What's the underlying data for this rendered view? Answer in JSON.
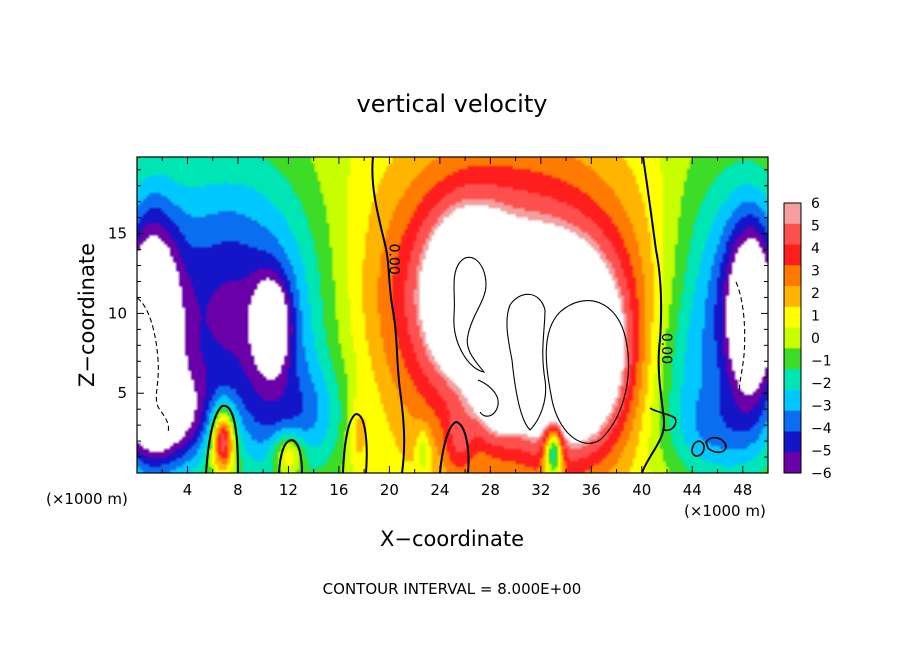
{
  "chart_data": {
    "type": "heatmap",
    "title": "vertical velocity",
    "xlabel": "X−coordinate",
    "ylabel": "Z−coordinate",
    "x_unit_left": "(×1000 m)",
    "x_unit_right": "(×1000 m)",
    "footer": "CONTOUR INTERVAL = 8.000E+00",
    "xlim": [
      0,
      50
    ],
    "ylim": [
      0,
      19.8
    ],
    "x_ticks": [
      4,
      8,
      12,
      16,
      20,
      24,
      28,
      32,
      36,
      40,
      44,
      48
    ],
    "y_ticks": [
      5,
      10,
      15
    ],
    "contour_labels": [
      {
        "text": "0.00",
        "x": 20.0,
        "y": 13.4
      },
      {
        "text": "0.00",
        "x": 41.6,
        "y": 7.8
      }
    ],
    "colorbar": {
      "levels": [
        6,
        5,
        4,
        3,
        2,
        1,
        0,
        -1,
        -2,
        -3,
        -4,
        -5,
        -6
      ],
      "level_labels": [
        "6",
        "5",
        "4",
        "3",
        "2",
        "1",
        "0",
        "−1",
        "−2",
        "−3",
        "−4",
        "−5",
        "−6"
      ],
      "colors": [
        "#f4a0a0",
        "#ff5050",
        "#ff1e1e",
        "#ff7a00",
        "#ffb400",
        "#ffff00",
        "#c8ff00",
        "#3cdc28",
        "#00e5b4",
        "#00c8ff",
        "#0a6ef0",
        "#1414c8",
        "#6a00a8"
      ],
      "saturation_color": "#ffffff"
    },
    "field": [
      {
        "x": 1.0,
        "y": 9.0,
        "sx": 1.6,
        "sy": 5.0,
        "a": -9.0
      },
      {
        "x": 2.2,
        "y": 3.5,
        "sx": 3.0,
        "sy": 2.2,
        "a": -5.0
      },
      {
        "x": 4.5,
        "y": 11.0,
        "sx": 4.0,
        "sy": 6.0,
        "a": -2.8
      },
      {
        "x": 10.0,
        "y": 9.5,
        "sx": 4.5,
        "sy": 6.5,
        "a": -4.5
      },
      {
        "x": 10.7,
        "y": 9.3,
        "sx": 1.0,
        "sy": 2.0,
        "a": -5.5
      },
      {
        "x": 13.0,
        "y": 3.5,
        "sx": 3.0,
        "sy": 2.5,
        "a": -2.5
      },
      {
        "x": 6.8,
        "y": 2.1,
        "sx": 0.6,
        "sy": 1.3,
        "a": 6.5
      },
      {
        "x": 6.8,
        "y": 2.2,
        "sx": 1.2,
        "sy": 2.3,
        "a": 2.5
      },
      {
        "x": 12.0,
        "y": 1.2,
        "sx": 0.9,
        "sy": 1.0,
        "a": 4.0
      },
      {
        "x": 17.5,
        "y": 2.5,
        "sx": 0.6,
        "sy": 1.6,
        "a": 2.0
      },
      {
        "x": 29.5,
        "y": 10.5,
        "sx": 8.5,
        "sy": 8.0,
        "a": 5.0
      },
      {
        "x": 29.5,
        "y": 11.0,
        "sx": 6.0,
        "sy": 4.5,
        "a": 3.0
      },
      {
        "x": 26.0,
        "y": 11.5,
        "sx": 2.2,
        "sy": 3.5,
        "a": 4.5
      },
      {
        "x": 34.5,
        "y": 7.0,
        "sx": 3.0,
        "sy": 4.0,
        "a": 8.0
      },
      {
        "x": 31.0,
        "y": 7.5,
        "sx": 1.5,
        "sy": 2.5,
        "a": 3.0
      },
      {
        "x": 28.5,
        "y": 5.0,
        "sx": 1.2,
        "sy": 2.0,
        "a": 3.5
      },
      {
        "x": 25.5,
        "y": 1.8,
        "sx": 0.8,
        "sy": 1.5,
        "a": 2.0
      },
      {
        "x": 33.0,
        "y": 1.4,
        "sx": 0.5,
        "sy": 1.2,
        "a": -7.0
      },
      {
        "x": 46.5,
        "y": 10.0,
        "sx": 3.5,
        "sy": 6.5,
        "a": -4.5
      },
      {
        "x": 48.8,
        "y": 10.0,
        "sx": 1.4,
        "sy": 4.0,
        "a": -8.0
      },
      {
        "x": 42.5,
        "y": 6.5,
        "sx": 2.0,
        "sy": 3.0,
        "a": -1.2
      },
      {
        "x": 22.7,
        "y": 1.4,
        "sx": 0.4,
        "sy": 1.0,
        "a": -2.0
      },
      {
        "x": 45.5,
        "y": 2.5,
        "sx": 3.0,
        "sy": 2.0,
        "a": -2.0
      }
    ]
  }
}
